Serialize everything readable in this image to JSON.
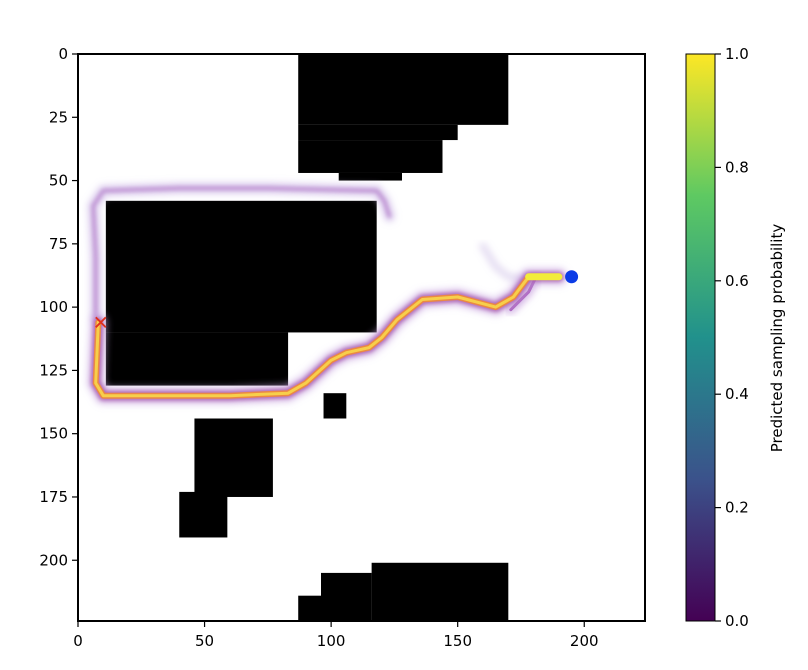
{
  "chart_data": {
    "type": "heatmap",
    "title": "",
    "xlabel": "",
    "ylabel": "",
    "xlim": [
      0,
      224
    ],
    "ylim": [
      224,
      0
    ],
    "x_ticks": [
      0,
      50,
      100,
      150,
      200
    ],
    "y_ticks": [
      0,
      25,
      50,
      75,
      100,
      125,
      150,
      175,
      200
    ],
    "obstacles": [
      [
        87,
        0,
        170,
        28
      ],
      [
        87,
        28,
        150,
        34
      ],
      [
        87,
        34,
        144,
        47
      ],
      [
        103,
        47,
        128,
        50
      ],
      [
        11,
        58,
        118,
        110
      ],
      [
        11,
        110,
        83,
        131
      ],
      [
        97,
        134,
        106,
        144
      ],
      [
        46,
        144,
        77,
        160
      ],
      [
        46,
        160,
        77,
        175
      ],
      [
        40,
        173,
        59,
        191
      ],
      [
        116,
        201,
        170,
        224
      ],
      [
        96,
        205,
        116,
        224
      ],
      [
        87,
        214,
        96,
        224
      ]
    ],
    "path_main": [
      [
        8,
        106
      ],
      [
        7,
        130
      ],
      [
        10,
        135
      ],
      [
        30,
        135
      ],
      [
        60,
        135
      ],
      [
        83,
        134
      ],
      [
        90,
        130
      ],
      [
        100,
        121
      ],
      [
        106,
        118
      ],
      [
        115,
        116
      ],
      [
        120,
        112
      ],
      [
        126,
        105
      ],
      [
        136,
        97
      ],
      [
        150,
        96
      ],
      [
        165,
        100
      ],
      [
        172,
        96
      ],
      [
        178,
        88
      ],
      [
        190,
        88
      ]
    ],
    "path_branch": [
      [
        171,
        101
      ],
      [
        178,
        94
      ],
      [
        181,
        88
      ]
    ],
    "path_upper": [
      [
        7,
        104
      ],
      [
        7,
        80
      ],
      [
        6,
        60
      ],
      [
        10,
        54
      ],
      [
        40,
        53
      ],
      [
        75,
        53
      ],
      [
        118,
        54
      ],
      [
        121,
        58
      ],
      [
        123,
        64
      ]
    ],
    "path_faint": [
      [
        160,
        76
      ],
      [
        165,
        84
      ],
      [
        170,
        88
      ],
      [
        178,
        89
      ]
    ],
    "goal_x": [
      9,
      106
    ],
    "start_dot": [
      195,
      88
    ],
    "colorbar": {
      "label": "Predicted sampling probability",
      "ticks": [
        "0.0",
        "0.2",
        "0.4",
        "0.6",
        "0.8",
        "1.0"
      ],
      "colormap": [
        "#440154",
        "#3b528b",
        "#21918c",
        "#5ec962",
        "#fde725"
      ]
    },
    "colors": {
      "obstacle": "#000000",
      "goal_marker": "#e0301e",
      "start_marker": "#0b3ce6"
    }
  }
}
